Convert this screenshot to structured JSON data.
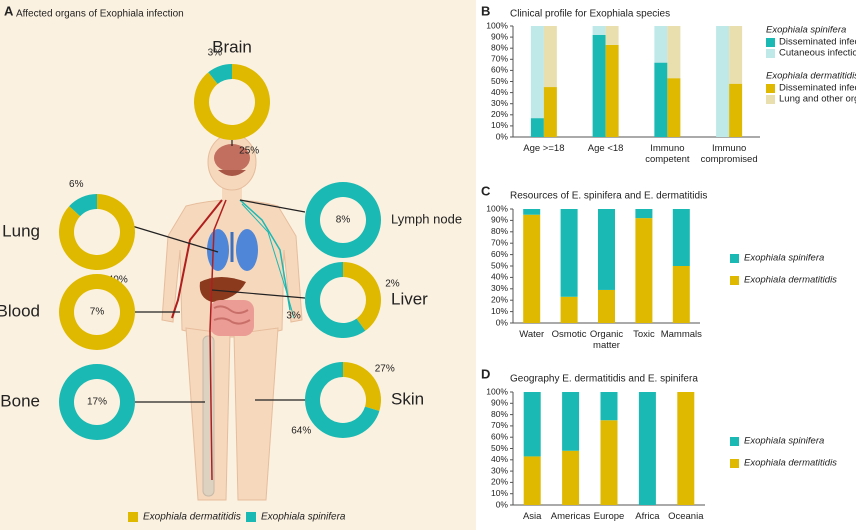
{
  "chart_data": [
    {
      "panel": "A",
      "type": "donut",
      "title": "Affected organs of Exophiala infection",
      "categories": [
        "Brain",
        "Lung",
        "Blood",
        "Bone",
        "Lymph node",
        "Liver",
        "Skin"
      ],
      "series": [
        {
          "name": "Exophiala dermatitidis",
          "color": "#dfb900",
          "values": [
            25,
            40,
            7,
            null,
            null,
            2,
            27
          ],
          "value_labels": [
            "25%",
            "40%",
            "7%",
            null,
            null,
            "2%",
            "27%"
          ]
        },
        {
          "name": "Exophiala spinifera",
          "color": "#1ab9b3",
          "values": [
            3,
            6,
            null,
            17,
            8,
            3,
            64
          ],
          "value_labels": [
            "3%",
            "6%",
            null,
            "17%",
            "8%",
            "3%",
            "64%"
          ]
        }
      ]
    },
    {
      "panel": "B",
      "type": "stacked_bar",
      "title": "Clinical profile for Exophiala species",
      "categories": [
        "Age >=18",
        "Age <18",
        "Immuno\ncompetent",
        "Immuno\ncompromised"
      ],
      "legend_groups": [
        "Exophiala spinifera",
        "Exophiala dermatitidis"
      ],
      "series": [
        {
          "name": "Disseminated infection",
          "stack": 0,
          "color": "#1ab9b3",
          "values": [
            17,
            92,
            67,
            0
          ]
        },
        {
          "name": "Cutaneous infection",
          "stack": 0,
          "color": "#bfe8e8",
          "values": [
            83,
            8,
            33,
            100
          ]
        },
        {
          "name": "Disseminated infection",
          "stack": 1,
          "color": "#dfb900",
          "values": [
            45,
            83,
            53,
            48
          ]
        },
        {
          "name": "Lung and other organs",
          "stack": 1,
          "color": "#e9dfae",
          "values": [
            55,
            17,
            47,
            52
          ]
        }
      ],
      "ylim": [
        0,
        100
      ],
      "yticks": [
        {
          "value": 0,
          "label": "0%"
        },
        {
          "value": 10,
          "label": "10%"
        },
        {
          "value": 20,
          "label": "20%"
        },
        {
          "value": 30,
          "label": "30%"
        },
        {
          "value": 40,
          "label": "40%"
        },
        {
          "value": 50,
          "label": "50%"
        },
        {
          "value": 60,
          "label": "60%"
        },
        {
          "value": 70,
          "label": "70%"
        },
        {
          "value": 80,
          "label": "80%"
        },
        {
          "value": 90,
          "label": "90%"
        },
        {
          "value": 100,
          "label": "100%"
        }
      ]
    },
    {
      "panel": "C",
      "type": "stacked_bar",
      "title": "Resources of E. spinifera and E. dermatitidis",
      "categories": [
        "Water",
        "Osmotic",
        "Organic\nmatter",
        "Toxic",
        "Mammals"
      ],
      "legend_order": "reverse",
      "series": [
        {
          "name": "Exophiala dermatitidis",
          "color": "#dfb900",
          "values": [
            95,
            23,
            29,
            92,
            50
          ]
        },
        {
          "name": "Exophiala spinifera",
          "color": "#1ab9b3",
          "values": [
            5,
            77,
            71,
            8,
            50
          ]
        }
      ],
      "ylim": [
        0,
        100
      ],
      "yticks": [
        {
          "value": 0,
          "label": "0%"
        },
        {
          "value": 10,
          "label": "10%"
        },
        {
          "value": 20,
          "label": "20%"
        },
        {
          "value": 30,
          "label": "30%"
        },
        {
          "value": 40,
          "label": "40%"
        },
        {
          "value": 50,
          "label": "50%"
        },
        {
          "value": 60,
          "label": "60%"
        },
        {
          "value": 70,
          "label": "70%"
        },
        {
          "value": 80,
          "label": "80%"
        },
        {
          "value": 90,
          "label": "90%"
        },
        {
          "value": 100,
          "label": "100%"
        }
      ]
    },
    {
      "panel": "D",
      "type": "stacked_bar",
      "title": "Geography  E. dermatitidis and E. spinifera",
      "categories": [
        "Asia",
        "Americas",
        "Europe",
        "Africa",
        "Oceania"
      ],
      "legend_order": "reverse",
      "series": [
        {
          "name": "Exophiala dermatitidis",
          "color": "#dfb900",
          "values": [
            43,
            48,
            75,
            0,
            100
          ]
        },
        {
          "name": "Exophiala spinifera",
          "color": "#1ab9b3",
          "values": [
            57,
            52,
            25,
            100,
            0
          ]
        }
      ],
      "ylim": [
        0,
        100
      ],
      "yticks": [
        {
          "value": 0,
          "label": "0%"
        },
        {
          "value": 10,
          "label": "10%"
        },
        {
          "value": 20,
          "label": "20%"
        },
        {
          "value": 30,
          "label": "30%"
        },
        {
          "value": 40,
          "label": "40%"
        },
        {
          "value": 50,
          "label": "50%"
        },
        {
          "value": 60,
          "label": "60%"
        },
        {
          "value": 70,
          "label": "70%"
        },
        {
          "value": 80,
          "label": "80%"
        },
        {
          "value": 90,
          "label": "90%"
        },
        {
          "value": 100,
          "label": "100%"
        }
      ]
    }
  ]
}
